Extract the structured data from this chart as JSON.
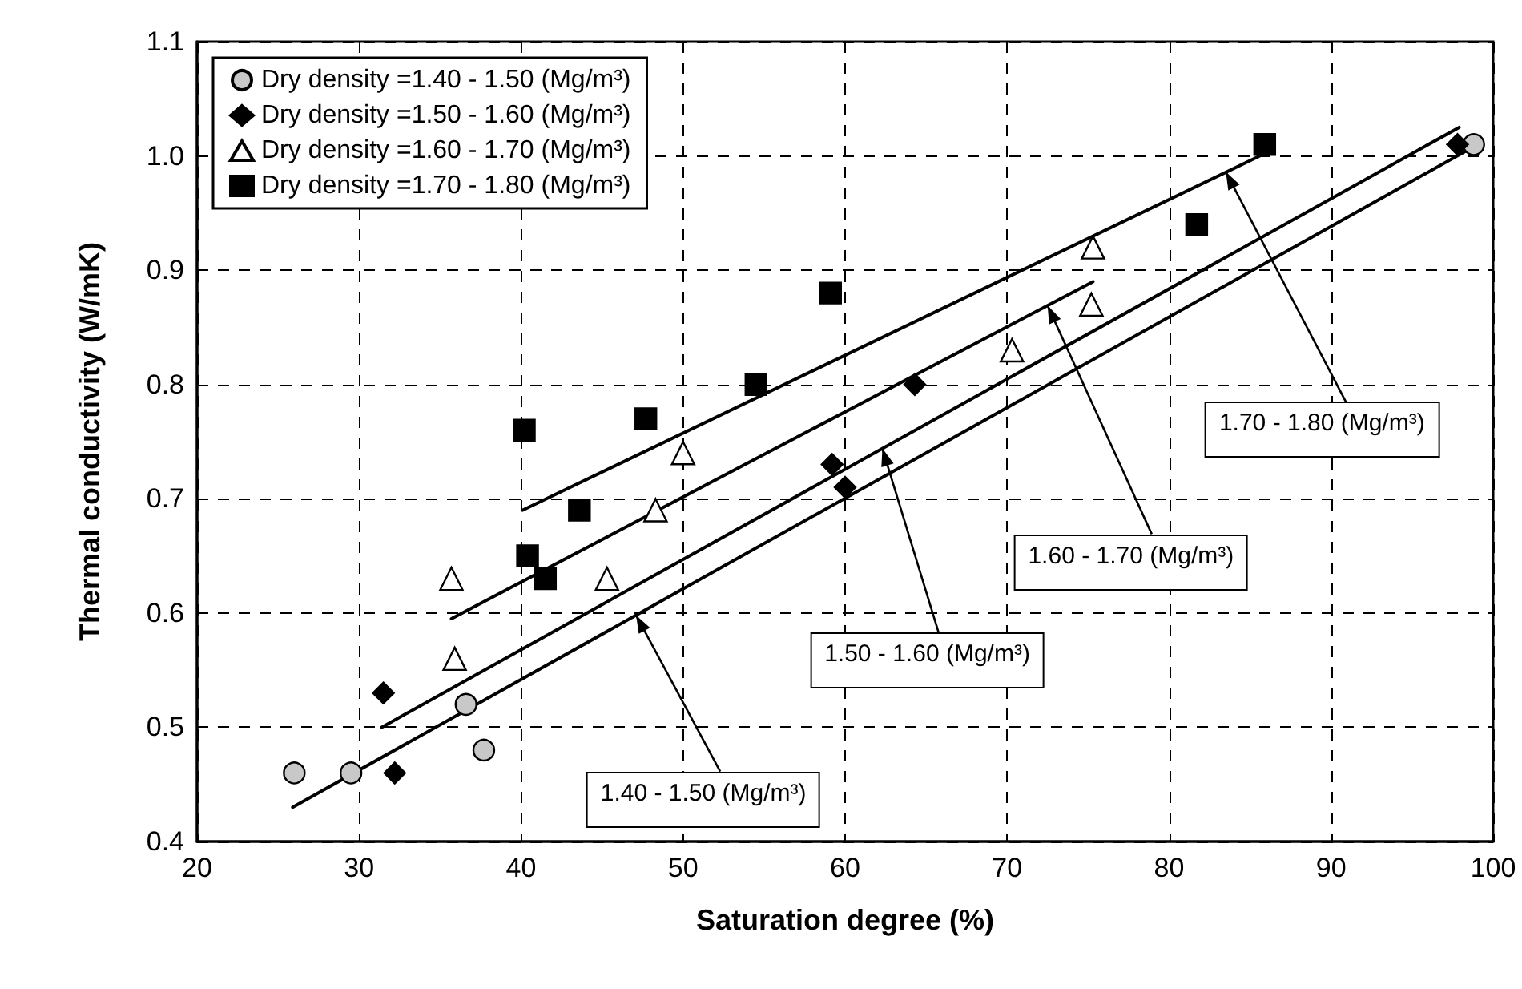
{
  "chart_data": {
    "type": "scatter",
    "xlabel": "Saturation degree (%)",
    "ylabel": "Thermal conductivity (W/mK)",
    "xlim": [
      20,
      100
    ],
    "xticks": [
      20,
      30,
      40,
      50,
      60,
      70,
      80,
      90,
      100
    ],
    "ylim": [
      0.4,
      1.1
    ],
    "yticks": [
      0.4,
      0.5,
      0.6,
      0.7,
      0.8,
      0.9,
      {
        "value": 1,
        "label": "1.0"
      },
      1.1
    ],
    "grid": true,
    "legend": "top left",
    "series": [
      {
        "name": "Dry density =1.40 - 1.50 (Mg/m³)",
        "marker": "circle",
        "color": "#c8c8c8",
        "x": [
          26.0,
          29.5,
          36.6,
          37.7,
          98.8
        ],
        "values": [
          0.46,
          0.46,
          0.52,
          0.48,
          1.01
        ]
      },
      {
        "name": "Dry density =1.50 - 1.60 (Mg/m³)",
        "marker": "diamond",
        "color": "#000000",
        "x": [
          31.5,
          32.2,
          59.2,
          60.0,
          64.3,
          97.8
        ],
        "values": [
          0.53,
          0.46,
          0.73,
          0.71,
          0.8,
          1.01
        ]
      },
      {
        "name": "Dry density =1.60 - 1.70 (Mg/m³)",
        "marker": "triangle",
        "color": "#ffffff",
        "x": [
          35.7,
          35.9,
          45.3,
          48.3,
          50.0,
          70.3,
          75.2,
          75.3
        ],
        "values": [
          0.63,
          0.56,
          0.63,
          0.69,
          0.74,
          0.83,
          0.87,
          0.92
        ]
      },
      {
        "name": "Dry density =1.70 - 1.80 (Mg/m³)",
        "marker": "square",
        "color": "#000000",
        "x": [
          40.2,
          40.4,
          41.5,
          43.6,
          47.7,
          54.5,
          59.1,
          81.7,
          85.9
        ],
        "values": [
          0.76,
          0.65,
          0.63,
          0.69,
          0.77,
          0.8,
          0.88,
          0.94,
          1.01
        ]
      },
      {
        "type": "line",
        "marker": "none",
        "color": "#000000",
        "x": [
          25.9,
          98.4
        ],
        "values": [
          0.43,
          1.005
        ]
      },
      {
        "type": "line",
        "marker": "none",
        "color": "#000000",
        "x": [
          31.4,
          97.9
        ],
        "values": [
          0.5,
          1.025
        ]
      },
      {
        "type": "line",
        "marker": "none",
        "color": "#000000",
        "x": [
          35.7,
          75.3
        ],
        "values": [
          0.595,
          0.89
        ]
      },
      {
        "type": "line",
        "marker": "none",
        "color": "#000000",
        "x": [
          40.1,
          85.6
        ],
        "values": [
          0.69,
          1.0
        ]
      }
    ],
    "annotations": [
      {
        "text": "1.40 - 1.50 (Mg/m³)",
        "x": 47.1,
        "y": 0.598
      },
      {
        "text": "1.50 - 1.60 (Mg/m³)",
        "x": 62.3,
        "y": 0.744
      },
      {
        "text": "1.60 - 1.70 (Mg/m³)",
        "x": 72.5,
        "y": 0.869
      },
      {
        "text": "1.70 - 1.80 (Mg/m³)",
        "x": 83.5,
        "y": 0.986
      }
    ]
  }
}
